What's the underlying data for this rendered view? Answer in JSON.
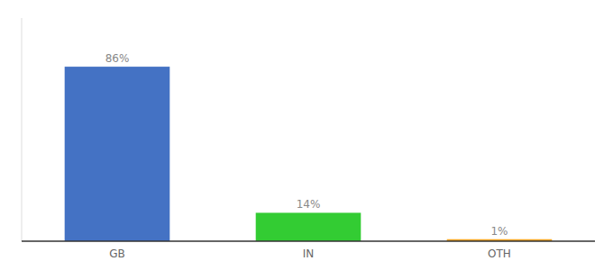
{
  "chart_data": {
    "type": "bar",
    "categories": [
      "GB",
      "IN",
      "OTH"
    ],
    "values": [
      86,
      14,
      1
    ],
    "value_labels": [
      "86%",
      "14%",
      "1%"
    ],
    "colors": [
      "#4472c4",
      "#33cc33",
      "#f5a623"
    ],
    "ylim": [
      0,
      110
    ],
    "data_labels": true,
    "tick_labels": "x"
  }
}
